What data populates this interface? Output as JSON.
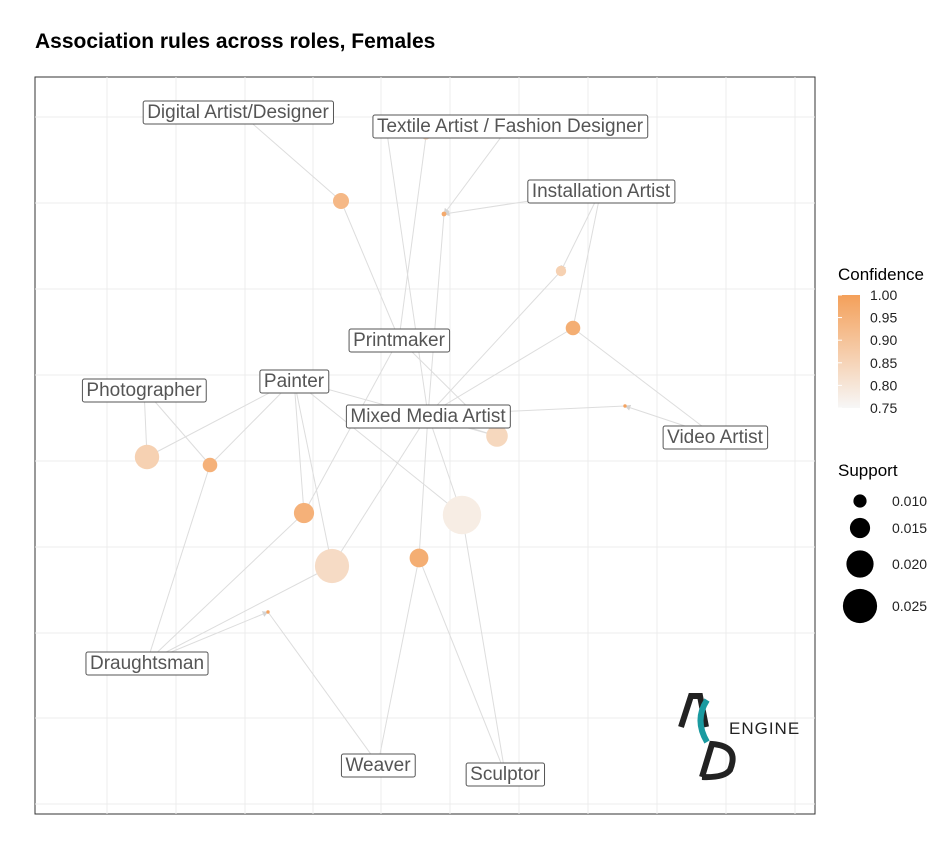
{
  "chart_data": {
    "type": "network",
    "title": "Association rules across roles, Females",
    "nodes": [
      {
        "id": "digital",
        "label": "Digital Artist/Designer"
      },
      {
        "id": "textile",
        "label": "Textile Artist / Fashion Designer"
      },
      {
        "id": "install",
        "label": "Installation Artist"
      },
      {
        "id": "print",
        "label": "Printmaker"
      },
      {
        "id": "painter",
        "label": "Painter"
      },
      {
        "id": "photo",
        "label": "Photographer"
      },
      {
        "id": "mixed",
        "label": "Mixed Media Artist"
      },
      {
        "id": "video",
        "label": "Video Artist"
      },
      {
        "id": "draught",
        "label": "Draughtsman"
      },
      {
        "id": "weaver",
        "label": "Weaver"
      },
      {
        "id": "sculptor",
        "label": "Sculptor"
      }
    ],
    "rules": [
      {
        "from": [
          "digital"
        ],
        "to": "print",
        "support": 0.012,
        "confidence": 0.93
      },
      {
        "from": [
          "textile"
        ],
        "to": "mixed",
        "support": 0.006,
        "confidence": 0.9
      },
      {
        "from": [
          "textile"
        ],
        "to": "print",
        "support": 0.006,
        "confidence": 0.85
      },
      {
        "from": [
          "install",
          "textile"
        ],
        "to": "mixed",
        "support": 0.004,
        "confidence": 0.97
      },
      {
        "from": [
          "install"
        ],
        "to": "mixed",
        "support": 0.008,
        "confidence": 0.86
      },
      {
        "from": [
          "install",
          "mixed"
        ],
        "to": "video",
        "support": 0.011,
        "confidence": 0.96
      },
      {
        "from": [
          "video"
        ],
        "to": "mixed",
        "support": 0.003,
        "confidence": 0.99
      },
      {
        "from": [
          "photo"
        ],
        "to": "painter",
        "support": 0.018,
        "confidence": 0.86
      },
      {
        "from": [
          "photo",
          "draught"
        ],
        "to": "painter",
        "support": 0.011,
        "confidence": 0.95
      },
      {
        "from": [
          "mixed",
          "print"
        ],
        "to": "painter",
        "support": 0.016,
        "confidence": 0.84
      },
      {
        "from": [
          "draught",
          "print"
        ],
        "to": "painter",
        "support": 0.015,
        "confidence": 0.95
      },
      {
        "from": [
          "mixed",
          "sculptor"
        ],
        "to": "painter",
        "support": 0.028,
        "confidence": 0.78
      },
      {
        "from": [
          "draught",
          "mixed"
        ],
        "to": "painter",
        "support": 0.025,
        "confidence": 0.83
      },
      {
        "from": [
          "sculptor",
          "weaver"
        ],
        "to": "mixed",
        "support": 0.014,
        "confidence": 0.96
      },
      {
        "from": [
          "draught"
        ],
        "to": "weaver",
        "support": 0.003,
        "confidence": 0.99
      }
    ],
    "legend": {
      "confidence": {
        "title": "Confidence",
        "ticks": [
          "1.00",
          "0.95",
          "0.90",
          "0.85",
          "0.80",
          "0.75"
        ],
        "low_color": "#f7f7f7",
        "high_color": "#f4a05a"
      },
      "support": {
        "title": "Support",
        "ticks": [
          "0.010",
          "0.015",
          "0.020",
          "0.025"
        ]
      }
    },
    "grid": true,
    "legend_position": "right",
    "edge_color": "#dddddd"
  },
  "logo": {
    "text": "ENGINE",
    "colors": {
      "dark": "#222222",
      "teal": "#1a9aa0"
    }
  }
}
